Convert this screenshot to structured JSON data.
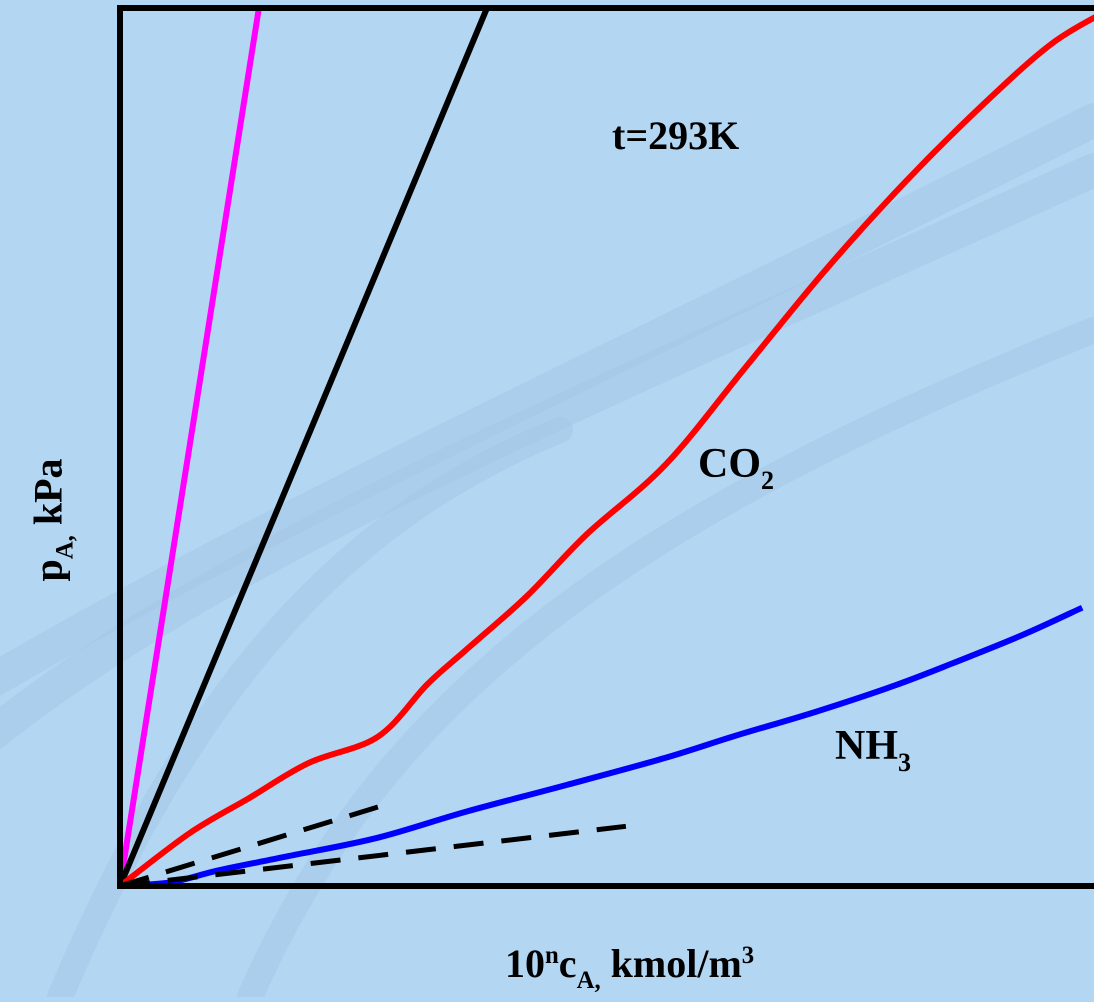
{
  "colors": {
    "background": "#b3d7f3",
    "axis": "#000000",
    "magenta_line": "#ff00ff",
    "black_line": "#000000",
    "co2": "#ff0000",
    "nh3": "#0000ff",
    "tangent": "#000000"
  },
  "labels": {
    "condition": "t=293K",
    "co2": {
      "main": "CO",
      "sub": "2"
    },
    "nh3": {
      "main": "NH",
      "sub": "3"
    },
    "xaxis": {
      "base": "10",
      "exp": "n",
      "var": "c",
      "sub": "A,",
      "rest": " kmol/m",
      "unit_exp": "3"
    },
    "yaxis": {
      "var": "p",
      "sub": "A,",
      "rest": " kPa"
    }
  },
  "chart_data": {
    "type": "line",
    "xlabel": "10^n c_A, kmol/m^3",
    "ylabel": "p_A, kPa",
    "annotation": "t=293K",
    "xlim": [
      0,
      100
    ],
    "ylim": [
      0,
      100
    ],
    "grid": false,
    "legend": "none (curves labeled directly)",
    "series": [
      {
        "key": "magenta",
        "style": "solid",
        "color": "#ff00ff",
        "x": [
          0,
          14
        ],
        "y": [
          0,
          100
        ]
      },
      {
        "key": "black",
        "style": "solid",
        "color": "#000000",
        "x": [
          0,
          37
        ],
        "y": [
          0,
          100
        ]
      },
      {
        "name": "CO2",
        "style": "solid",
        "color": "#ff0000",
        "x": [
          0,
          7,
          13,
          19,
          26,
          31,
          35,
          41,
          47,
          55,
          63,
          71,
          79,
          87,
          94,
          100
        ],
        "y": [
          0,
          6,
          10,
          14,
          17,
          23,
          27,
          33,
          40,
          48,
          59,
          70,
          80,
          89,
          96,
          100
        ]
      },
      {
        "name": "NH3",
        "style": "solid",
        "color": "#0000ff",
        "x": [
          0,
          5,
          10,
          17,
          26,
          35,
          45,
          55,
          62,
          70,
          78,
          84,
          91,
          97
        ],
        "y": [
          0,
          0.4,
          1.8,
          3.4,
          5.5,
          8.5,
          11.5,
          14.6,
          17.1,
          19.8,
          22.8,
          25.4,
          28.6,
          31.7
        ]
      },
      {
        "key": "co2-tangent",
        "style": "dashed",
        "color": "#000000",
        "x": [
          0,
          26
        ],
        "y": [
          0,
          9
        ]
      },
      {
        "key": "nh3-tangent",
        "style": "dashed",
        "color": "#000000",
        "x": [
          0,
          51
        ],
        "y": [
          0,
          6.8
        ]
      }
    ]
  }
}
